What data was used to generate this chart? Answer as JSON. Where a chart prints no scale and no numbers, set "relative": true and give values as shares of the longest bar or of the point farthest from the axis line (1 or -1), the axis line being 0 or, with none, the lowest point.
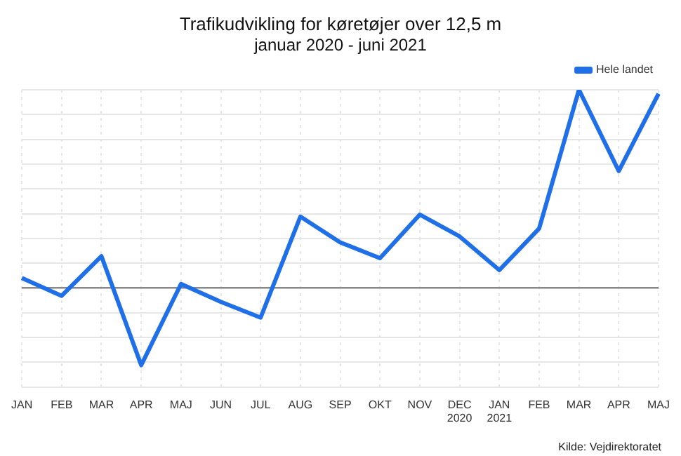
{
  "chart_data": {
    "type": "line",
    "title": "Trafikudvikling for køretøjer over 12,5 m",
    "subtitle": "januar 2020 - juni 2021",
    "categories": [
      "JAN",
      "FEB",
      "MAR",
      "APR",
      "MAJ",
      "JUN",
      "JUL",
      "AUG",
      "SEP",
      "OKT",
      "NOV",
      "DEC 2020",
      "JAN 2021",
      "FEB",
      "MAR",
      "APR",
      "MAJ"
    ],
    "relative": true,
    "series": [
      {
        "name": "Hele landet",
        "color": "#1f6fe8",
        "values": [
          0.05,
          -0.04,
          0.16,
          -0.39,
          0.02,
          -0.07,
          -0.15,
          0.36,
          0.23,
          0.15,
          0.37,
          0.26,
          0.09,
          0.3,
          1,
          0.59,
          0.98
        ]
      }
    ],
    "grid": true,
    "legend": "top right",
    "marker": "none",
    "line_style": "solid",
    "annotations": [
      "Kilde: Vejdirektoratet"
    ]
  }
}
